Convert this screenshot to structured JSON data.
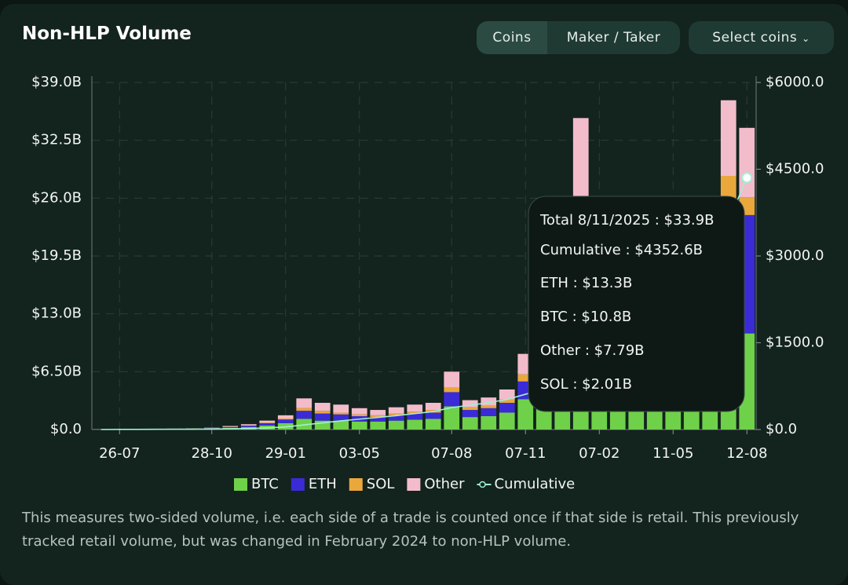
{
  "header": {
    "title": "Non-HLP Volume",
    "buttons": [
      "Coins",
      "Maker / Taker",
      "Select coins"
    ]
  },
  "chart_data": {
    "type": "bar",
    "stacked": true,
    "categories": [
      null,
      "26-07",
      null,
      null,
      null,
      null,
      "28-10",
      null,
      null,
      null,
      "29-01",
      null,
      null,
      null,
      "03-05",
      null,
      null,
      null,
      null,
      "07-08",
      null,
      null,
      null,
      "07-11",
      null,
      null,
      null,
      "07-02",
      null,
      null,
      null,
      "11-05",
      null,
      null,
      null,
      "12-08"
    ],
    "series": [
      {
        "name": "BTC",
        "color": "#6fd14a",
        "values": [
          0.03,
          0.03,
          0.03,
          0.04,
          0.05,
          0.06,
          0.09,
          0.18,
          0.27,
          0.45,
          0.72,
          1.2,
          1.0,
          1.0,
          0.9,
          0.9,
          1.0,
          1.1,
          1.2,
          2.6,
          1.4,
          1.5,
          1.9,
          3.4,
          3.1,
          4.8,
          13.0,
          8.0,
          4.5,
          5.5,
          5.0,
          5.5,
          7.0,
          9.0,
          12.0,
          10.8
        ]
      },
      {
        "name": "ETH",
        "color": "#3b2bd6",
        "values": [
          0.01,
          0.01,
          0.01,
          0.02,
          0.02,
          0.03,
          0.05,
          0.1,
          0.15,
          0.25,
          0.4,
          0.9,
          0.8,
          0.7,
          0.6,
          0.5,
          0.6,
          0.7,
          0.7,
          1.6,
          0.8,
          0.9,
          1.1,
          2.0,
          1.7,
          2.8,
          8.0,
          5.0,
          2.5,
          3.5,
          3.0,
          3.0,
          4.5,
          7.0,
          14.0,
          13.3
        ]
      },
      {
        "name": "SOL",
        "color": "#eaa83c",
        "values": [
          0,
          0,
          0,
          0.01,
          0.01,
          0.01,
          0.01,
          0.02,
          0.04,
          0.07,
          0.11,
          0.3,
          0.3,
          0.2,
          0.2,
          0.2,
          0.2,
          0.2,
          0.3,
          0.5,
          0.3,
          0.3,
          0.4,
          0.8,
          0.7,
          1.2,
          3.0,
          2.0,
          0.8,
          1.0,
          0.8,
          0.8,
          1.0,
          1.5,
          2.5,
          2.01
        ]
      },
      {
        "name": "Other",
        "color": "#f2bccb",
        "values": [
          0.01,
          0.01,
          0.01,
          0.01,
          0.02,
          0.02,
          0.05,
          0.1,
          0.14,
          0.23,
          0.37,
          1.1,
          0.9,
          0.9,
          0.7,
          0.6,
          0.7,
          0.8,
          0.8,
          1.8,
          0.8,
          0.9,
          1.1,
          2.3,
          2.0,
          3.2,
          11.0,
          5.0,
          2.2,
          3.0,
          2.2,
          2.7,
          3.5,
          4.5,
          8.5,
          7.79
        ]
      },
      {
        "name": "Cumulative",
        "color": "#9ff0d6",
        "type": "line",
        "axis": "y2",
        "values": [
          0,
          2,
          3,
          4,
          5,
          6,
          8,
          12,
          18,
          28,
          45,
          80,
          115,
          150,
          180,
          210,
          240,
          275,
          310,
          380,
          420,
          465,
          520,
          610,
          700,
          850,
          1200,
          1450,
          1600,
          1800,
          1950,
          2150,
          2450,
          2900,
          3600,
          4352.6
        ]
      }
    ],
    "ylim": [
      0,
      39
    ],
    "yticks": [
      {
        "value": 0,
        "label": "$0.0"
      },
      {
        "value": 6.5,
        "label": "$6.50B"
      },
      {
        "value": 13,
        "label": "$13.0B"
      },
      {
        "value": 19.5,
        "label": "$19.5B"
      },
      {
        "value": 26,
        "label": "$26.0B"
      },
      {
        "value": 32.5,
        "label": "$32.5B"
      },
      {
        "value": 39,
        "label": "$39.0B"
      }
    ],
    "y2lim": [
      0,
      6000
    ],
    "y2ticks": [
      {
        "value": 0,
        "label": "$0.0"
      },
      {
        "value": 1500,
        "label": "$1500.0"
      },
      {
        "value": 3000,
        "label": "$3000.0"
      },
      {
        "value": 4500,
        "label": "$4500.0"
      },
      {
        "value": 6000,
        "label": "$6000.0"
      }
    ],
    "grid": true,
    "tooltip": {
      "lines": [
        {
          "text": "Total 8/11/2025 : $33.9B",
          "color": "#ffffff"
        },
        {
          "text": "Cumulative : $4352.6B",
          "color": "#9ff0d6"
        },
        {
          "text": "ETH : $13.3B",
          "color": "#4b3ce8"
        },
        {
          "text": "BTC : $10.8B",
          "color": "#6fd14a"
        },
        {
          "text": "Other : $7.79B",
          "color": "#f2bccb"
        },
        {
          "text": "SOL : $2.01B",
          "color": "#eaa83c"
        }
      ]
    }
  },
  "footnote": "This measures two-sided volume, i.e. each side of a trade is counted once if that side is retail. This previously tracked retail volume, but was changed in February 2024 to non-HLP volume."
}
